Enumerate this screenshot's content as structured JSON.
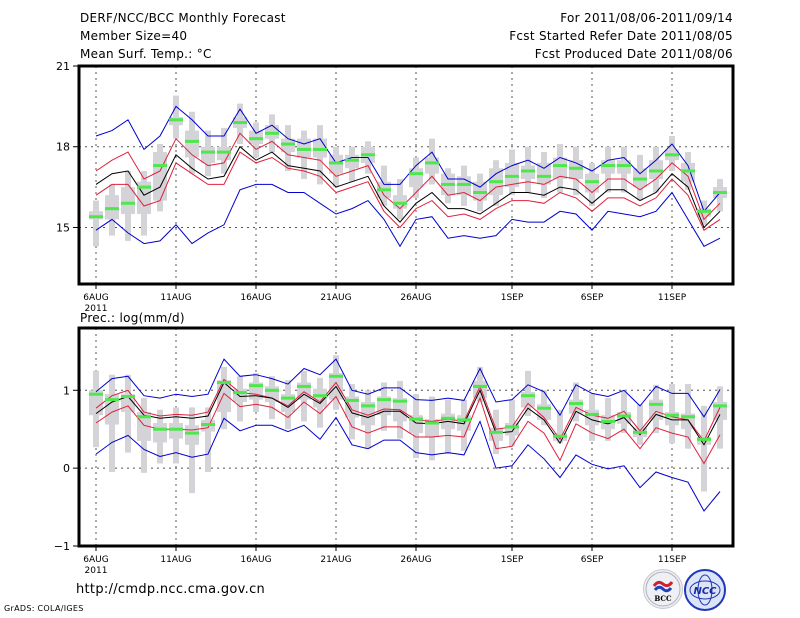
{
  "header": {
    "title": "DERF/NCC/BCC Monthly Forecast",
    "member_size": "Member Size=40",
    "variable_top": "Mean Surf. Temp.: °C",
    "period": "For 2011/08/06-2011/09/14",
    "started": "Fcst Started Refer Date 2011/08/05",
    "produced": "Fcst Produced Date 2011/08/06"
  },
  "footer": {
    "url": "http://cmdp.ncc.cma.gov.cn",
    "credit": "GrADS: COLA/IGES",
    "logos": [
      "BCC",
      "NCC"
    ]
  },
  "colors": {
    "box": "#d3d3d8",
    "median": "#4ce84c",
    "outer": "#0000d0",
    "inner": "#e0203c",
    "mean": "#000000",
    "grid": "#555555"
  },
  "chart_data": [
    {
      "type": "line",
      "title": "Mean Surf. Temp.: °C",
      "xlabel": "",
      "ylabel": "",
      "ylim": [
        12.9,
        21
      ],
      "yticks": [
        15,
        18,
        21
      ],
      "ytick_labels": [
        "15",
        "18",
        "21"
      ],
      "xticks": [
        0,
        5,
        10,
        15,
        20,
        26,
        31,
        36
      ],
      "xtick_labels": [
        "6AUG",
        "11AUG",
        "16AUG",
        "21AUG",
        "26AUG",
        "1SEP",
        "6SEP",
        "11SEP"
      ],
      "xtick_sub": "2011",
      "grid": true,
      "n_days": 40,
      "series": [
        {
          "name": "upper-bound",
          "role": "outer",
          "values": [
            18.4,
            18.6,
            19.0,
            17.9,
            18.4,
            19.5,
            19.0,
            18.4,
            18.4,
            19.4,
            18.5,
            18.8,
            18.3,
            18.1,
            18.3,
            17.4,
            17.6,
            17.6,
            16.6,
            16.6,
            17.3,
            17.8,
            16.8,
            16.8,
            16.5,
            17.0,
            17.3,
            17.5,
            17.2,
            17.6,
            17.4,
            17.1,
            17.5,
            17.6,
            17.0,
            17.5,
            18.1,
            17.3,
            15.6,
            16.3
          ]
        },
        {
          "name": "upper-inner",
          "role": "inner",
          "values": [
            17.1,
            17.5,
            17.8,
            16.8,
            17.1,
            18.3,
            17.7,
            17.3,
            17.4,
            18.5,
            17.9,
            18.2,
            17.7,
            17.6,
            17.5,
            16.9,
            17.1,
            17.3,
            16.2,
            15.7,
            16.3,
            16.9,
            16.2,
            16.3,
            16.0,
            16.5,
            16.6,
            16.7,
            16.6,
            16.9,
            16.8,
            16.3,
            16.8,
            16.8,
            16.4,
            16.8,
            17.4,
            16.9,
            15.3,
            15.9
          ]
        },
        {
          "name": "ensemble-mean",
          "role": "mean",
          "values": [
            16.6,
            17.0,
            17.1,
            16.2,
            16.5,
            17.7,
            17.2,
            16.8,
            16.9,
            18.0,
            17.5,
            17.8,
            17.3,
            17.2,
            17.1,
            16.5,
            16.7,
            16.9,
            15.8,
            15.2,
            15.9,
            16.3,
            15.7,
            15.7,
            15.5,
            15.9,
            16.3,
            16.3,
            16.2,
            16.5,
            16.4,
            15.9,
            16.4,
            16.4,
            16.0,
            16.3,
            17.0,
            16.5,
            15.0,
            15.6
          ]
        },
        {
          "name": "lower-inner",
          "role": "inner",
          "values": [
            16.2,
            16.6,
            16.6,
            15.8,
            16.0,
            17.4,
            17.0,
            16.6,
            16.6,
            17.8,
            17.4,
            17.6,
            17.2,
            17.1,
            16.9,
            16.3,
            16.5,
            16.7,
            15.6,
            15.0,
            15.7,
            16.0,
            15.4,
            15.5,
            15.3,
            15.7,
            16.0,
            16.0,
            15.9,
            16.3,
            16.1,
            15.6,
            16.1,
            16.1,
            15.8,
            16.1,
            16.8,
            16.2,
            14.9,
            15.3
          ]
        },
        {
          "name": "lower-bound",
          "role": "outer",
          "values": [
            14.9,
            15.3,
            14.8,
            14.4,
            14.5,
            15.1,
            14.4,
            14.8,
            15.1,
            16.4,
            16.6,
            16.6,
            16.3,
            16.3,
            15.9,
            15.5,
            15.7,
            16.0,
            15.3,
            14.3,
            15.3,
            15.4,
            14.6,
            14.7,
            14.6,
            14.7,
            15.3,
            15.2,
            15.2,
            15.6,
            15.5,
            14.9,
            15.6,
            15.5,
            15.4,
            15.6,
            16.3,
            15.3,
            14.3,
            14.6
          ]
        }
      ],
      "median": [
        15.4,
        15.7,
        15.9,
        16.5,
        17.3,
        19.0,
        18.2,
        17.8,
        17.8,
        18.9,
        18.3,
        18.5,
        18.1,
        17.9,
        17.9,
        17.4,
        17.5,
        17.7,
        16.4,
        15.9,
        17.0,
        17.4,
        16.6,
        16.6,
        16.3,
        16.7,
        16.9,
        17.1,
        16.9,
        17.3,
        17.2,
        16.7,
        17.3,
        17.3,
        16.8,
        17.1,
        17.7,
        17.1,
        15.6,
        16.3
      ],
      "box_min": [
        14.3,
        14.7,
        14.5,
        14.7,
        15.6,
        18.3,
        17.0,
        16.9,
        17.0,
        18.1,
        17.6,
        17.8,
        17.1,
        16.8,
        16.6,
        16.5,
        16.7,
        17.0,
        15.8,
        15.3,
        16.1,
        16.6,
        15.9,
        15.8,
        15.6,
        15.8,
        16.2,
        16.3,
        16.1,
        16.3,
        16.2,
        15.8,
        16.3,
        16.3,
        16.0,
        16.3,
        17.1,
        16.4,
        15.1,
        15.6
      ],
      "box_q1": [
        15.3,
        15.3,
        15.5,
        15.5,
        16.0,
        18.8,
        17.6,
        17.4,
        17.5,
        18.7,
        18.1,
        18.3,
        17.8,
        17.6,
        17.6,
        17.0,
        17.2,
        17.4,
        16.1,
        15.7,
        16.5,
        17.0,
        16.2,
        16.2,
        16.0,
        16.2,
        16.5,
        16.8,
        16.6,
        16.8,
        16.8,
        16.3,
        17.0,
        17.0,
        16.5,
        16.8,
        17.5,
        16.7,
        15.4,
        16.1
      ],
      "box_q3": [
        15.6,
        16.2,
        16.5,
        16.7,
        17.8,
        19.1,
        18.6,
        18.0,
        18.0,
        19.1,
        18.6,
        18.8,
        18.3,
        18.3,
        18.3,
        17.7,
        17.7,
        18.0,
        16.7,
        16.2,
        17.2,
        17.6,
        17.0,
        16.9,
        16.7,
        17.2,
        17.4,
        17.3,
        17.4,
        17.6,
        17.5,
        17.0,
        17.5,
        17.5,
        17.2,
        17.5,
        17.9,
        17.4,
        15.7,
        16.5
      ],
      "box_max": [
        16.0,
        16.6,
        17.1,
        17.1,
        18.1,
        19.9,
        19.3,
        18.6,
        18.7,
        19.6,
        18.9,
        19.2,
        18.8,
        18.6,
        18.8,
        18.0,
        18.0,
        18.2,
        17.3,
        16.8,
        17.6,
        18.3,
        17.2,
        17.3,
        17.0,
        17.5,
        17.9,
        18.0,
        17.8,
        18.1,
        18.0,
        17.4,
        18.0,
        18.0,
        17.7,
        18.0,
        18.4,
        17.8,
        16.0,
        16.8
      ]
    },
    {
      "type": "line",
      "title": "Prec.: log(mm/d)",
      "xlabel": "",
      "ylabel": "",
      "ylim": [
        -1,
        1.8
      ],
      "yticks": [
        -1,
        0,
        1
      ],
      "ytick_labels": [
        "−1",
        "0",
        "1"
      ],
      "xticks": [
        0,
        5,
        10,
        15,
        20,
        26,
        31,
        36
      ],
      "xtick_labels": [
        "6AUG",
        "11AUG",
        "16AUG",
        "21AUG",
        "26AUG",
        "1SEP",
        "6SEP",
        "11SEP"
      ],
      "xtick_sub": "2011",
      "grid": true,
      "n_days": 40,
      "series": [
        {
          "name": "upper-bound",
          "role": "outer",
          "values": [
            0.98,
            1.15,
            1.18,
            0.93,
            0.9,
            0.95,
            0.92,
            0.95,
            1.4,
            1.18,
            1.2,
            1.15,
            1.08,
            1.28,
            1.2,
            1.4,
            1.0,
            0.95,
            1.03,
            1.03,
            0.88,
            0.87,
            0.9,
            0.87,
            1.28,
            0.85,
            0.88,
            1.07,
            0.98,
            0.68,
            1.07,
            0.96,
            0.92,
            1.0,
            0.8,
            1.05,
            0.96,
            0.96,
            0.66,
            1.01
          ]
        },
        {
          "name": "upper-inner",
          "role": "inner",
          "values": [
            0.77,
            0.93,
            1.0,
            0.72,
            0.67,
            0.69,
            0.68,
            0.72,
            1.14,
            0.97,
            0.95,
            0.9,
            0.8,
            0.98,
            0.85,
            1.1,
            0.75,
            0.68,
            0.76,
            0.75,
            0.62,
            0.6,
            0.63,
            0.6,
            1.05,
            0.5,
            0.53,
            0.83,
            0.65,
            0.37,
            0.78,
            0.68,
            0.64,
            0.73,
            0.48,
            0.73,
            0.66,
            0.62,
            0.35,
            0.78
          ]
        },
        {
          "name": "ensemble-mean",
          "role": "mean",
          "values": [
            0.7,
            0.85,
            0.92,
            0.68,
            0.64,
            0.66,
            0.64,
            0.67,
            1.1,
            0.92,
            0.93,
            0.9,
            0.78,
            0.95,
            0.83,
            1.05,
            0.71,
            0.65,
            0.73,
            0.73,
            0.58,
            0.57,
            0.6,
            0.57,
            1.0,
            0.45,
            0.47,
            0.77,
            0.62,
            0.32,
            0.73,
            0.62,
            0.57,
            0.65,
            0.43,
            0.69,
            0.62,
            0.62,
            0.3,
            0.69
          ]
        },
        {
          "name": "lower-inner",
          "role": "inner",
          "values": [
            0.58,
            0.72,
            0.8,
            0.55,
            0.5,
            0.5,
            0.49,
            0.52,
            0.96,
            0.79,
            0.82,
            0.78,
            0.65,
            0.85,
            0.7,
            0.92,
            0.53,
            0.45,
            0.53,
            0.53,
            0.4,
            0.4,
            0.42,
            0.4,
            0.9,
            0.25,
            0.28,
            0.6,
            0.45,
            0.1,
            0.57,
            0.45,
            0.38,
            0.5,
            0.25,
            0.52,
            0.45,
            0.4,
            0.06,
            0.43
          ]
        },
        {
          "name": "lower-bound",
          "role": "outer",
          "values": [
            0.18,
            0.33,
            0.42,
            0.24,
            0.15,
            0.2,
            0.14,
            0.18,
            0.64,
            0.48,
            0.55,
            0.55,
            0.47,
            0.55,
            0.37,
            0.65,
            0.3,
            0.25,
            0.36,
            0.36,
            0.2,
            0.17,
            0.2,
            0.17,
            0.6,
            0.0,
            0.03,
            0.3,
            0.12,
            -0.12,
            0.17,
            0.05,
            -0.01,
            0.03,
            -0.25,
            -0.05,
            -0.12,
            -0.18,
            -0.55,
            -0.3
          ]
        }
      ],
      "median": [
        0.95,
        0.88,
        0.92,
        0.66,
        0.5,
        0.5,
        0.45,
        0.56,
        1.1,
        0.97,
        1.06,
        1.0,
        0.9,
        1.05,
        0.93,
        1.18,
        0.87,
        0.8,
        0.88,
        0.86,
        0.63,
        0.58,
        0.64,
        0.62,
        1.05,
        0.46,
        0.53,
        0.93,
        0.77,
        0.41,
        0.83,
        0.69,
        0.6,
        0.67,
        0.46,
        0.82,
        0.68,
        0.66,
        0.37,
        0.8
      ],
      "box_min": [
        0.27,
        -0.05,
        0.2,
        -0.06,
        0.06,
        0.06,
        -0.32,
        -0.05,
        0.5,
        0.6,
        0.72,
        0.63,
        0.5,
        0.6,
        0.52,
        0.75,
        0.37,
        0.25,
        0.48,
        0.38,
        0.13,
        0.1,
        0.18,
        0.22,
        0.85,
        0.18,
        0.28,
        0.67,
        0.55,
        0.32,
        0.6,
        0.35,
        0.35,
        0.45,
        0.3,
        0.45,
        0.32,
        0.25,
        -0.3,
        0.25
      ],
      "box_q1": [
        0.68,
        0.56,
        0.72,
        0.35,
        0.33,
        0.38,
        0.3,
        0.47,
        0.72,
        0.85,
        0.88,
        0.85,
        0.72,
        0.88,
        0.78,
        0.88,
        0.65,
        0.55,
        0.68,
        0.6,
        0.45,
        0.4,
        0.5,
        0.48,
        0.9,
        0.35,
        0.42,
        0.78,
        0.62,
        0.35,
        0.7,
        0.55,
        0.5,
        0.57,
        0.4,
        0.62,
        0.55,
        0.5,
        0.3,
        0.62
      ],
      "box_q3": [
        1.0,
        0.95,
        0.95,
        0.72,
        0.58,
        0.58,
        0.55,
        0.62,
        1.13,
        1.02,
        1.1,
        1.05,
        0.95,
        1.1,
        1.02,
        1.22,
        0.92,
        0.85,
        0.92,
        0.9,
        0.68,
        0.63,
        0.7,
        0.68,
        1.12,
        0.52,
        0.58,
        0.98,
        0.82,
        0.45,
        0.88,
        0.75,
        0.68,
        0.72,
        0.52,
        0.88,
        0.72,
        0.7,
        0.4,
        0.85
      ],
      "box_max": [
        1.25,
        1.2,
        1.2,
        0.9,
        0.75,
        0.78,
        0.78,
        0.78,
        1.3,
        1.18,
        1.22,
        1.18,
        1.13,
        1.25,
        1.16,
        1.45,
        1.08,
        1.0,
        1.1,
        1.12,
        0.95,
        0.92,
        0.88,
        0.88,
        1.3,
        0.75,
        0.88,
        1.25,
        1.0,
        0.75,
        1.1,
        0.96,
        0.9,
        1.0,
        0.82,
        1.07,
        1.08,
        1.08,
        0.8,
        1.05
      ]
    }
  ]
}
